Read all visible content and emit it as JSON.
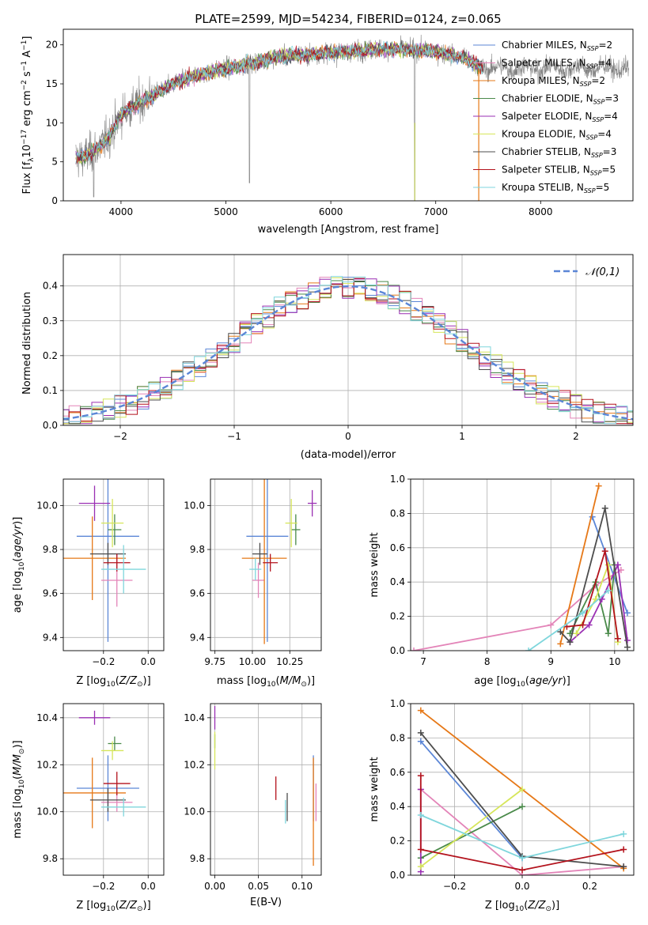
{
  "title": "PLATE=2599, MJD=54234, FIBERID=0124, z=0.065",
  "colors": {
    "Chabrier MILES": "#5b86d6",
    "Salpeter MILES": "#e384b8",
    "Kroupa MILES": "#e67817",
    "Chabrier ELODIE": "#4a8a4a",
    "Salpeter ELODIE": "#9a2fb3",
    "Kroupa ELODIE": "#d6e65a",
    "Chabrier STELIB": "#4d4d4d",
    "Salpeter STELIB": "#b3121c",
    "Kroupa STELIB": "#7fd6dc",
    "data": "#808080"
  },
  "chart_data": [
    {
      "id": "spectrum",
      "type": "line",
      "title": "PLATE=2599, MJD=54234, FIBERID=0124, z=0.065",
      "xlabel": "wavelength [Angstrom, rest frame]",
      "ylabel": "Flux [f_λ10^-17 erg cm^-2 s^-1 A^-1]",
      "xlim": [
        3450,
        8880
      ],
      "ylim": [
        0,
        22
      ],
      "xticks": [
        4000,
        5000,
        6000,
        7000,
        8000
      ],
      "yticks": [
        0,
        5,
        10,
        15,
        20
      ],
      "legend_position": "top-right",
      "legend": [
        {
          "name": "Chabrier MILES",
          "nssp": "2"
        },
        {
          "name": "Salpeter MILES",
          "nssp": "4"
        },
        {
          "name": "Kroupa MILES",
          "nssp": "2"
        },
        {
          "name": "Chabrier ELODIE",
          "nssp": "3"
        },
        {
          "name": "Salpeter ELODIE",
          "nssp": "4"
        },
        {
          "name": "Kroupa ELODIE",
          "nssp": "4"
        },
        {
          "name": "Chabrier STELIB",
          "nssp": "3"
        },
        {
          "name": "Salpeter STELIB",
          "nssp": "5"
        },
        {
          "name": "Kroupa STELIB",
          "nssp": "5"
        }
      ],
      "continuum": [
        [
          3600,
          5.5
        ],
        [
          3700,
          6
        ],
        [
          3800,
          7
        ],
        [
          3900,
          8.5
        ],
        [
          4000,
          11
        ],
        [
          4100,
          12
        ],
        [
          4300,
          13.5
        ],
        [
          4500,
          15
        ],
        [
          4700,
          16
        ],
        [
          5000,
          17
        ],
        [
          5200,
          17.5
        ],
        [
          5500,
          18.5
        ],
        [
          6000,
          19
        ],
        [
          6500,
          19.5
        ],
        [
          7000,
          19.2
        ],
        [
          7300,
          18.2
        ],
        [
          7500,
          16.6
        ]
      ],
      "model_range": [
        3570,
        7450
      ],
      "data_range": [
        3570,
        8840
      ]
    },
    {
      "id": "residuals",
      "type": "line",
      "xlabel": "(data-model)/error",
      "ylabel": "Normed distribution",
      "xlim": [
        -2.5,
        2.5
      ],
      "ylim": [
        0,
        0.49
      ],
      "xticks": [
        -2,
        -1,
        0,
        1,
        2
      ],
      "yticks": [
        0.0,
        0.1,
        0.2,
        0.3,
        0.4
      ],
      "legend_position": "top-right",
      "reference": {
        "name": "𝒩(0,1)",
        "mean": 0,
        "sigma": 1,
        "style": "dashed"
      },
      "bin_width": 0.1
    },
    {
      "id": "age-vs-z",
      "type": "scatter",
      "xlabel": "Z [log10(Z/Z⊙)]",
      "ylabel": "age [log10(age/yr)]",
      "xlim": [
        -0.38,
        0.07
      ],
      "ylim": [
        9.34,
        10.12
      ],
      "xticks": [
        -0.2,
        0.0
      ],
      "yticks": [
        9.4,
        9.6,
        9.8,
        10.0
      ],
      "points": [
        {
          "series": "Chabrier MILES",
          "x": -0.18,
          "xerr": 0.14,
          "y": 9.86,
          "yerr": 0.48
        },
        {
          "series": "Salpeter MILES",
          "x": -0.14,
          "xerr": 0.07,
          "y": 9.66,
          "yerr": 0.12
        },
        {
          "series": "Kroupa MILES",
          "x": -0.25,
          "xerr": 0.15,
          "y": 9.76,
          "yerr": 0.19
        },
        {
          "series": "Chabrier ELODIE",
          "x": -0.15,
          "xerr": 0.03,
          "y": 9.89,
          "yerr": 0.07
        },
        {
          "series": "Salpeter ELODIE",
          "x": -0.24,
          "xerr": 0.07,
          "y": 10.01,
          "yerr": 0.08
        },
        {
          "series": "Kroupa ELODIE",
          "x": -0.16,
          "xerr": 0.05,
          "y": 9.92,
          "yerr": 0.11
        },
        {
          "series": "Chabrier STELIB",
          "x": -0.18,
          "xerr": 0.08,
          "y": 9.78,
          "yerr": 0.05
        },
        {
          "series": "Salpeter STELIB",
          "x": -0.14,
          "xerr": 0.06,
          "y": 9.74,
          "yerr": 0.04
        },
        {
          "series": "Kroupa STELIB",
          "x": -0.11,
          "xerr": 0.1,
          "y": 9.71,
          "yerr": 0.11
        }
      ]
    },
    {
      "id": "age-vs-mass",
      "type": "scatter",
      "xlabel": "mass [log10(M/M⊙)]",
      "xlim": [
        9.72,
        10.46
      ],
      "ylim": [
        9.34,
        10.12
      ],
      "xticks": [
        9.75,
        10.0,
        10.25
      ],
      "yticks": [
        9.4,
        9.6,
        9.8,
        10.0
      ],
      "points": [
        {
          "series": "Chabrier MILES",
          "x": 10.1,
          "xerr": 0.14,
          "y": 9.86,
          "yerr": 0.48
        },
        {
          "series": "Salpeter MILES",
          "x": 10.04,
          "xerr": 0.04,
          "y": 9.66,
          "yerr": 0.08
        },
        {
          "series": "Kroupa MILES",
          "x": 10.08,
          "xerr": 0.15,
          "y": 9.76,
          "yerr": 0.39
        },
        {
          "series": "Chabrier ELODIE",
          "x": 10.29,
          "xerr": 0.03,
          "y": 9.89,
          "yerr": 0.07
        },
        {
          "series": "Salpeter ELODIE",
          "x": 10.4,
          "xerr": 0.03,
          "y": 10.01,
          "yerr": 0.06
        },
        {
          "series": "Kroupa ELODIE",
          "x": 10.26,
          "xerr": 0.04,
          "y": 9.92,
          "yerr": 0.11
        },
        {
          "series": "Chabrier STELIB",
          "x": 10.05,
          "xerr": 0.05,
          "y": 9.78,
          "yerr": 0.05
        },
        {
          "series": "Salpeter STELIB",
          "x": 10.12,
          "xerr": 0.05,
          "y": 9.74,
          "yerr": 0.04
        },
        {
          "series": "Kroupa STELIB",
          "x": 10.02,
          "xerr": 0.04,
          "y": 9.71,
          "yerr": 0.05
        }
      ]
    },
    {
      "id": "weight-vs-age",
      "type": "line",
      "xlabel": "age [log10(age/yr)]",
      "ylabel": "mass weight",
      "xlim": [
        6.8,
        10.3
      ],
      "ylim": [
        0,
        1
      ],
      "xticks": [
        7,
        8,
        9,
        10
      ],
      "yticks": [
        0.0,
        0.2,
        0.4,
        0.6,
        0.8,
        1.0
      ],
      "series": [
        {
          "name": "Chabrier MILES",
          "points": [
            [
              9.65,
              0.78
            ],
            [
              10.2,
              0.22
            ]
          ]
        },
        {
          "name": "Salpeter MILES",
          "points": [
            [
              6.85,
              0.0
            ],
            [
              9.0,
              0.15
            ],
            [
              9.7,
              0.38
            ],
            [
              10.1,
              0.47
            ]
          ]
        },
        {
          "name": "Kroupa MILES",
          "points": [
            [
              9.15,
              0.04
            ],
            [
              9.75,
              0.96
            ]
          ]
        },
        {
          "name": "Chabrier ELODIE",
          "points": [
            [
              9.3,
              0.1
            ],
            [
              9.7,
              0.4
            ],
            [
              9.9,
              0.1
            ],
            [
              10.0,
              0.5
            ]
          ]
        },
        {
          "name": "Salpeter ELODIE",
          "points": [
            [
              9.3,
              0.05
            ],
            [
              9.6,
              0.15
            ],
            [
              9.8,
              0.3
            ],
            [
              10.05,
              0.5
            ],
            [
              10.2,
              0.06
            ]
          ]
        },
        {
          "name": "Kroupa ELODIE",
          "points": [
            [
              9.4,
              0.1
            ],
            [
              9.7,
              0.3
            ],
            [
              9.9,
              0.5
            ],
            [
              10.05,
              0.05
            ]
          ]
        },
        {
          "name": "Chabrier STELIB",
          "points": [
            [
              9.15,
              0.11
            ],
            [
              9.3,
              0.05
            ],
            [
              9.85,
              0.83
            ],
            [
              10.2,
              0.02
            ]
          ]
        },
        {
          "name": "Salpeter STELIB",
          "points": [
            [
              9.25,
              0.14
            ],
            [
              9.5,
              0.15
            ],
            [
              9.85,
              0.58
            ],
            [
              10.05,
              0.07
            ]
          ]
        },
        {
          "name": "Kroupa STELIB",
          "points": [
            [
              8.65,
              0.0
            ],
            [
              9.5,
              0.22
            ],
            [
              9.9,
              0.35
            ]
          ]
        }
      ]
    },
    {
      "id": "mass-vs-z",
      "type": "scatter",
      "xlabel": "Z [log10(Z/Z⊙)]",
      "ylabel": "mass [log10(M/M⊙)]",
      "xlim": [
        -0.38,
        0.07
      ],
      "ylim": [
        9.73,
        10.46
      ],
      "xticks": [
        -0.2,
        0.0
      ],
      "yticks": [
        9.8,
        10.0,
        10.2,
        10.4
      ],
      "points": [
        {
          "series": "Chabrier MILES",
          "x": -0.18,
          "xerr": 0.14,
          "y": 10.1,
          "yerr": 0.14
        },
        {
          "series": "Salpeter MILES",
          "x": -0.14,
          "xerr": 0.07,
          "y": 10.04,
          "yerr": 0.04
        },
        {
          "series": "Kroupa MILES",
          "x": -0.25,
          "xerr": 0.15,
          "y": 10.08,
          "yerr": 0.15
        },
        {
          "series": "Chabrier ELODIE",
          "x": -0.15,
          "xerr": 0.03,
          "y": 10.29,
          "yerr": 0.03
        },
        {
          "series": "Salpeter ELODIE",
          "x": -0.24,
          "xerr": 0.07,
          "y": 10.4,
          "yerr": 0.03
        },
        {
          "series": "Kroupa ELODIE",
          "x": -0.16,
          "xerr": 0.05,
          "y": 10.26,
          "yerr": 0.04
        },
        {
          "series": "Chabrier STELIB",
          "x": -0.18,
          "xerr": 0.08,
          "y": 10.05,
          "yerr": 0.05
        },
        {
          "series": "Salpeter STELIB",
          "x": -0.14,
          "xerr": 0.06,
          "y": 10.12,
          "yerr": 0.05
        },
        {
          "series": "Kroupa STELIB",
          "x": -0.11,
          "xerr": 0.1,
          "y": 10.02,
          "yerr": 0.04
        }
      ]
    },
    {
      "id": "mass-vs-ebv",
      "type": "scatter",
      "xlabel": "E(B-V)",
      "xlim": [
        -0.005,
        0.122
      ],
      "ylim": [
        9.73,
        10.46
      ],
      "xticks": [
        0.0,
        0.05,
        0.1
      ],
      "yticks": [
        9.8,
        10.0,
        10.2,
        10.4
      ],
      "points": [
        {
          "series": "Chabrier MILES",
          "x": 0.113,
          "y": 10.1,
          "yerr": 0.14
        },
        {
          "series": "Salpeter MILES",
          "x": 0.116,
          "y": 10.04,
          "yerr": 0.08
        },
        {
          "series": "Kroupa MILES",
          "x": 0.113,
          "y": 10.0,
          "yerr": 0.23
        },
        {
          "series": "Chabrier ELODIE",
          "x": 0.0,
          "y": 10.3,
          "yerr": 0.03
        },
        {
          "series": "Salpeter ELODIE",
          "x": 0.0,
          "y": 10.4,
          "yerr": 0.05
        },
        {
          "series": "Kroupa ELODIE",
          "x": 0.0,
          "y": 10.26,
          "yerr": 0.08
        },
        {
          "series": "Chabrier STELIB",
          "x": 0.083,
          "y": 10.02,
          "yerr": 0.06
        },
        {
          "series": "Salpeter STELIB",
          "x": 0.07,
          "y": 10.1,
          "yerr": 0.05
        },
        {
          "series": "Kroupa STELIB",
          "x": 0.081,
          "y": 10.0,
          "yerr": 0.05
        }
      ]
    },
    {
      "id": "weight-vs-z",
      "type": "line",
      "xlabel": "Z [log10(Z/Z⊙)]",
      "ylabel": "mass weight",
      "xlim": [
        -0.33,
        0.33
      ],
      "ylim": [
        0,
        1
      ],
      "xticks": [
        -0.2,
        0.0,
        0.2
      ],
      "yticks": [
        0.0,
        0.2,
        0.4,
        0.6,
        0.8,
        1.0
      ],
      "series": [
        {
          "name": "Chabrier MILES",
          "points": [
            [
              -0.3,
              0.78
            ],
            [
              0.0,
              0.1
            ]
          ]
        },
        {
          "name": "Salpeter MILES",
          "points": [
            [
              -0.3,
              0.5
            ],
            [
              0.0,
              0.0
            ],
            [
              0.3,
              0.05
            ]
          ]
        },
        {
          "name": "Kroupa MILES",
          "points": [
            [
              -0.3,
              0.96
            ],
            [
              0.3,
              0.04
            ]
          ]
        },
        {
          "name": "Chabrier ELODIE",
          "points": [
            [
              -0.3,
              0.1
            ],
            [
              0.0,
              0.4
            ]
          ]
        },
        {
          "name": "Salpeter ELODIE",
          "points": [
            [
              -0.3,
              0.5
            ],
            [
              -0.3,
              0.02
            ]
          ]
        },
        {
          "name": "Kroupa ELODIE",
          "points": [
            [
              -0.3,
              0.05
            ],
            [
              0.0,
              0.5
            ]
          ]
        },
        {
          "name": "Chabrier STELIB",
          "points": [
            [
              -0.3,
              0.83
            ],
            [
              0.0,
              0.11
            ],
            [
              0.3,
              0.05
            ]
          ]
        },
        {
          "name": "Salpeter STELIB",
          "points": [
            [
              -0.3,
              0.58
            ],
            [
              -0.3,
              0.15
            ],
            [
              0.0,
              0.03
            ],
            [
              0.3,
              0.15
            ]
          ]
        },
        {
          "name": "Kroupa STELIB",
          "points": [
            [
              -0.3,
              0.35
            ],
            [
              0.0,
              0.1
            ],
            [
              0.3,
              0.24
            ]
          ]
        }
      ]
    }
  ]
}
